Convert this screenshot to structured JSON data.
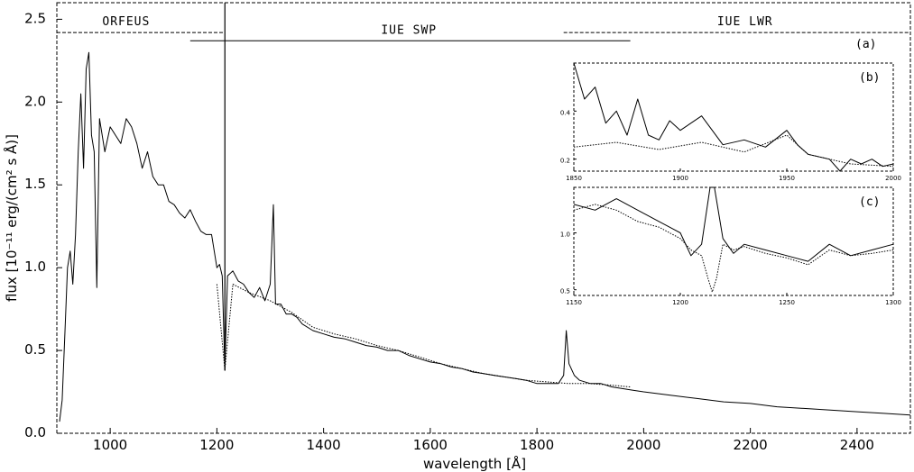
{
  "chart_data": [
    {
      "panel": "a",
      "type": "line",
      "panel_label": "(a)",
      "title": "",
      "xlabel": "wavelength [Å]",
      "ylabel": "flux [10⁻¹¹ erg/(cm² s Å)]",
      "xlim": [
        900,
        2500
      ],
      "ylim": [
        0.0,
        2.6
      ],
      "x_ticks": [
        1000,
        1200,
        1400,
        1600,
        1800,
        2000,
        2200,
        2400
      ],
      "y_ticks": [
        0.0,
        0.5,
        1.0,
        1.5,
        2.0,
        2.5
      ],
      "y_tick_labels": [
        "0.0",
        "0.5",
        "1.0",
        "1.5",
        "2.0",
        "2.5"
      ],
      "grid": false,
      "range_labels": [
        {
          "text": "ORFEUS",
          "from": 900,
          "to": 1215,
          "y": 2.42,
          "at": 1030
        },
        {
          "text": "IUE SWP",
          "from": 1150,
          "to": 1975,
          "y": 2.37,
          "at": 1560
        },
        {
          "text": "IUE LWR",
          "from": 1850,
          "to": 2500,
          "y": 2.42,
          "at": 2190
        }
      ],
      "series": [
        {
          "style": "solid",
          "x": [
            905,
            910,
            915,
            920,
            925,
            930,
            935,
            940,
            945,
            950,
            955,
            960,
            965,
            970,
            975,
            980,
            990,
            1000,
            1010,
            1020,
            1030,
            1040,
            1050,
            1060,
            1070,
            1080,
            1090,
            1100,
            1110,
            1120,
            1130,
            1140,
            1150,
            1160,
            1170,
            1180,
            1190,
            1200,
            1205,
            1210,
            1215,
            1220,
            1230,
            1240,
            1250,
            1260,
            1270,
            1280,
            1290,
            1300,
            1306,
            1310,
            1320,
            1330,
            1340,
            1350,
            1360,
            1380,
            1400,
            1420,
            1440,
            1460,
            1480,
            1500,
            1520,
            1540,
            1560,
            1580,
            1600,
            1620,
            1640,
            1660,
            1680,
            1700,
            1720,
            1740,
            1760,
            1780,
            1800,
            1820,
            1840,
            1850,
            1855,
            1860,
            1870,
            1880,
            1900,
            1920,
            1940,
            1960,
            1980,
            2000,
            2050,
            2100,
            2150,
            2200,
            2250,
            2300,
            2350,
            2400,
            2450,
            2500
          ],
          "y": [
            0.07,
            0.2,
            0.6,
            1.0,
            1.1,
            0.9,
            1.2,
            1.7,
            2.05,
            1.6,
            2.2,
            2.3,
            1.8,
            1.7,
            0.88,
            1.9,
            1.7,
            1.85,
            1.8,
            1.75,
            1.9,
            1.85,
            1.75,
            1.6,
            1.7,
            1.55,
            1.5,
            1.5,
            1.4,
            1.38,
            1.33,
            1.3,
            1.35,
            1.28,
            1.22,
            1.2,
            1.2,
            1.0,
            1.02,
            0.95,
            0.38,
            0.95,
            0.98,
            0.92,
            0.9,
            0.85,
            0.82,
            0.88,
            0.8,
            0.9,
            1.38,
            0.78,
            0.78,
            0.72,
            0.72,
            0.7,
            0.66,
            0.62,
            0.6,
            0.58,
            0.57,
            0.55,
            0.53,
            0.52,
            0.5,
            0.5,
            0.47,
            0.45,
            0.43,
            0.42,
            0.4,
            0.39,
            0.37,
            0.36,
            0.35,
            0.34,
            0.33,
            0.32,
            0.3,
            0.3,
            0.3,
            0.35,
            0.62,
            0.42,
            0.35,
            0.32,
            0.3,
            0.3,
            0.28,
            0.27,
            0.26,
            0.25,
            0.23,
            0.21,
            0.19,
            0.18,
            0.16,
            0.15,
            0.14,
            0.13,
            0.12,
            0.11
          ]
        },
        {
          "style": "dotted",
          "x": [
            1200,
            1215,
            1230,
            1260,
            1300,
            1340,
            1380,
            1420,
            1460,
            1500,
            1540,
            1580,
            1620,
            1660,
            1700,
            1740,
            1780,
            1820,
            1860,
            1900,
            1940,
            1975
          ],
          "y": [
            0.9,
            0.38,
            0.9,
            0.85,
            0.8,
            0.73,
            0.64,
            0.6,
            0.57,
            0.53,
            0.5,
            0.46,
            0.42,
            0.39,
            0.36,
            0.34,
            0.32,
            0.31,
            0.3,
            0.3,
            0.29,
            0.28
          ]
        }
      ]
    },
    {
      "panel": "b",
      "type": "line",
      "panel_label": "(b)",
      "xlim": [
        1850,
        2000
      ],
      "ylim": [
        0.15,
        0.6
      ],
      "x_ticks": [
        1850,
        1900,
        1950,
        2000
      ],
      "y_ticks": [
        0.2,
        0.4
      ],
      "y_tick_labels": [
        "0.2",
        "0.4"
      ],
      "series": [
        {
          "style": "solid",
          "x": [
            1850,
            1855,
            1860,
            1865,
            1870,
            1875,
            1880,
            1885,
            1890,
            1895,
            1900,
            1910,
            1920,
            1930,
            1940,
            1950,
            1955,
            1960,
            1970,
            1975,
            1980,
            1985,
            1990,
            1995,
            2000
          ],
          "y": [
            0.6,
            0.45,
            0.5,
            0.35,
            0.4,
            0.3,
            0.45,
            0.3,
            0.28,
            0.36,
            0.32,
            0.38,
            0.26,
            0.28,
            0.25,
            0.32,
            0.26,
            0.22,
            0.2,
            0.15,
            0.2,
            0.18,
            0.2,
            0.17,
            0.18
          ]
        },
        {
          "style": "dotted",
          "x": [
            1850,
            1870,
            1890,
            1910,
            1930,
            1950,
            1960,
            1970,
            1980,
            2000
          ],
          "y": [
            0.25,
            0.27,
            0.24,
            0.27,
            0.23,
            0.3,
            0.22,
            0.2,
            0.18,
            0.17
          ]
        }
      ]
    },
    {
      "panel": "c",
      "type": "line",
      "panel_label": "(c)",
      "xlim": [
        1150,
        1300
      ],
      "ylim": [
        0.45,
        1.4
      ],
      "x_ticks": [
        1150,
        1200,
        1250,
        1300
      ],
      "y_ticks": [
        0.5,
        1.0
      ],
      "y_tick_labels": [
        "0.5",
        "1.0"
      ],
      "series": [
        {
          "style": "solid",
          "x": [
            1150,
            1160,
            1170,
            1180,
            1190,
            1200,
            1205,
            1210,
            1214,
            1215,
            1216,
            1220,
            1225,
            1230,
            1240,
            1250,
            1260,
            1270,
            1280,
            1290,
            1300
          ],
          "y": [
            1.25,
            1.2,
            1.3,
            1.2,
            1.1,
            1.0,
            0.8,
            0.9,
            1.4,
            1.4,
            1.4,
            0.95,
            0.82,
            0.9,
            0.85,
            0.8,
            0.75,
            0.9,
            0.8,
            0.85,
            0.9
          ]
        },
        {
          "style": "dotted",
          "x": [
            1150,
            1160,
            1170,
            1180,
            1190,
            1200,
            1205,
            1210,
            1213,
            1215,
            1217,
            1220,
            1225,
            1230,
            1240,
            1250,
            1260,
            1270,
            1280,
            1290,
            1300
          ],
          "y": [
            1.2,
            1.25,
            1.2,
            1.1,
            1.05,
            0.95,
            0.85,
            0.8,
            0.6,
            0.48,
            0.6,
            0.9,
            0.85,
            0.88,
            0.82,
            0.78,
            0.72,
            0.85,
            0.8,
            0.82,
            0.85
          ]
        }
      ]
    }
  ]
}
